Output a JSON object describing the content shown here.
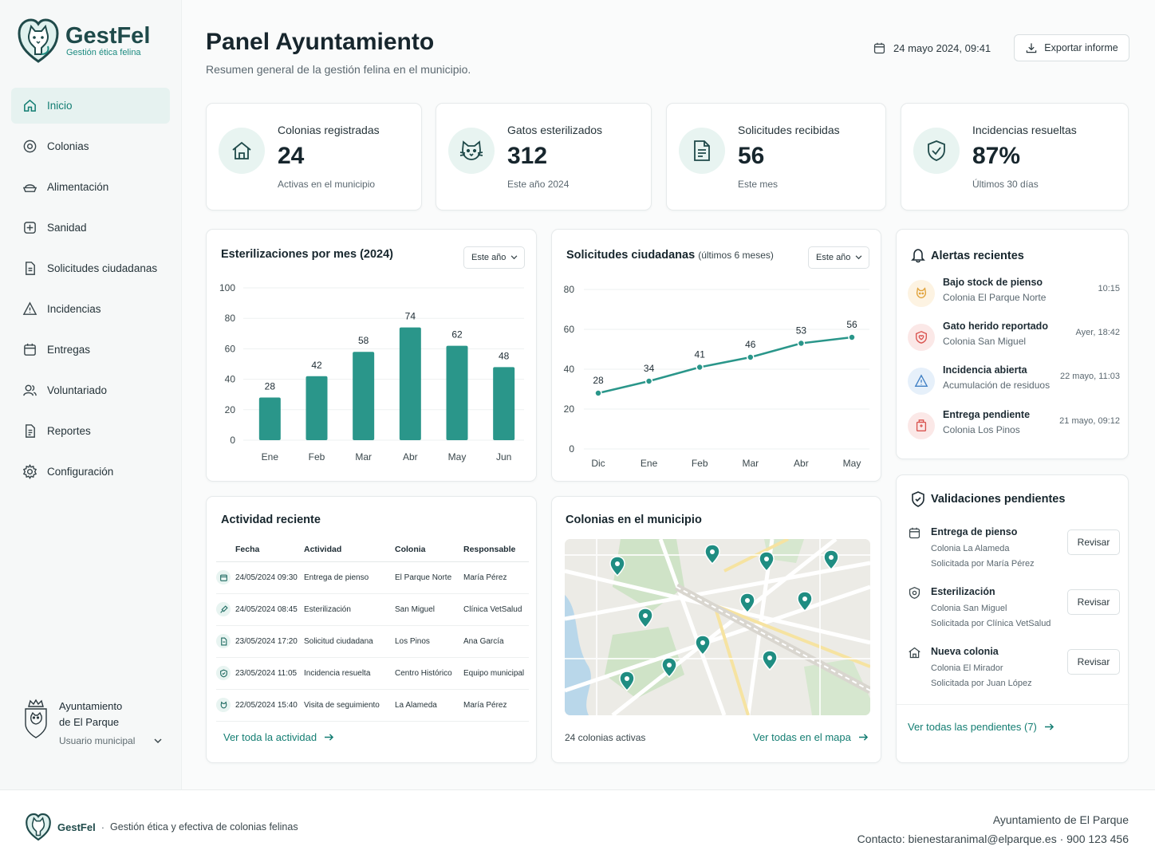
{
  "brand": {
    "name": "GestFel",
    "tagline": "Gestión ética felina"
  },
  "sidebar": {
    "items": [
      {
        "label": "Inicio",
        "icon": "home-icon",
        "active": true
      },
      {
        "label": "Colonias",
        "icon": "target-icon"
      },
      {
        "label": "Alimentación",
        "icon": "food-bowl-icon"
      },
      {
        "label": "Sanidad",
        "icon": "medical-plus-icon"
      },
      {
        "label": "Solicitudes ciudadanas",
        "icon": "document-icon"
      },
      {
        "label": "Incidencias",
        "icon": "warning-icon"
      },
      {
        "label": "Entregas",
        "icon": "calendar-icon"
      },
      {
        "label": "Voluntariado",
        "icon": "users-icon"
      },
      {
        "label": "Reportes",
        "icon": "report-icon"
      },
      {
        "label": "Configuración",
        "icon": "gear-icon"
      }
    ],
    "municipality": {
      "line1": "Ayuntamiento",
      "line2": "de El Parque",
      "role": "Usuario municipal"
    }
  },
  "header": {
    "title": "Panel Ayuntamiento",
    "subtitle": "Resumen general de la gestión felina en el municipio.",
    "date": "24 mayo 2024, 09:41",
    "export_label": "Exportar informe"
  },
  "stats": [
    {
      "label": "Colonias registradas",
      "value": "24",
      "note": "Activas en el municipio",
      "icon": "house-icon"
    },
    {
      "label": "Gatos esterilizados",
      "value": "312",
      "note": "Este año 2024",
      "icon": "cat-icon"
    },
    {
      "label": "Solicitudes recibidas",
      "value": "56",
      "note": "Este mes",
      "icon": "document-icon"
    },
    {
      "label": "Incidencias resueltas",
      "value": "87%",
      "note": "Últimos 30 días",
      "icon": "shield-check-icon"
    }
  ],
  "chart_data": [
    {
      "type": "bar",
      "title": "Esterilizaciones por mes (2024)",
      "filter": "Este año",
      "categories": [
        "Ene",
        "Feb",
        "Mar",
        "Abr",
        "May",
        "Jun"
      ],
      "values": [
        28,
        42,
        58,
        74,
        62,
        48
      ],
      "yticks": [
        "0",
        "20",
        "40",
        "60",
        "80",
        "100"
      ],
      "ylim": [
        0,
        100
      ],
      "color": "#2a968a",
      "grid": true
    },
    {
      "type": "line",
      "title": "Solicitudes ciudadanas",
      "subtitle": "(últimos 6 meses)",
      "filter": "Este año",
      "categories": [
        "Dic",
        "Ene",
        "Feb",
        "Mar",
        "Abr",
        "May"
      ],
      "values": [
        28,
        34,
        41,
        46,
        53,
        56
      ],
      "yticks": [
        "0",
        "20",
        "40",
        "60",
        "80"
      ],
      "ylim": [
        0,
        80
      ],
      "color": "#2a968a",
      "grid": true
    }
  ],
  "alerts": {
    "title": "Alertas recientes",
    "items": [
      {
        "title": "Bajo stock de pienso",
        "subtitle": "Colonia El Parque Norte",
        "time": "10:15",
        "icon": "cat-face-icon",
        "color": "#e0a23a",
        "bg": "#fdf3e2"
      },
      {
        "title": "Gato herido reportado",
        "subtitle": "Colonia San Miguel",
        "time": "Ayer, 18:42",
        "icon": "shield-alert-icon",
        "color": "#d9534f",
        "bg": "#fbe8e7"
      },
      {
        "title": "Incidencia abierta",
        "subtitle": "Acumulación de residuos",
        "time": "22 mayo, 11:03",
        "icon": "warning-icon",
        "color": "#3f7fc4",
        "bg": "#e6f0fa"
      },
      {
        "title": "Entrega pendiente",
        "subtitle": "Colonia Los Pinos",
        "time": "21 mayo, 09:12",
        "icon": "package-icon",
        "color": "#d9534f",
        "bg": "#fbe8e7"
      }
    ]
  },
  "validations": {
    "title": "Validaciones pendientes",
    "items": [
      {
        "title": "Entrega de pienso",
        "line1": "Colonia La Alameda",
        "line2": "Solicitada por María Pérez",
        "button": "Revisar",
        "icon": "calendar-icon"
      },
      {
        "title": "Esterilización",
        "line1": "Colonia San Miguel",
        "line2": "Solicitada por Clínica VetSalud",
        "button": "Revisar",
        "icon": "badge-icon"
      },
      {
        "title": "Nueva colonia",
        "line1": "Colonia El Mirador",
        "line2": "Solicitada por Juan López",
        "button": "Revisar",
        "icon": "house-icon"
      }
    ],
    "link": "Ver todas las pendientes (7)"
  },
  "activity": {
    "title": "Actividad reciente",
    "columns": [
      "Fecha",
      "Actividad",
      "Colonia",
      "Responsable"
    ],
    "rows": [
      {
        "date": "24/05/2024 09:30",
        "activity": "Entrega de pienso",
        "colony": "El Parque Norte",
        "owner": "María Pérez",
        "icon": "calendar-icon"
      },
      {
        "date": "24/05/2024 08:45",
        "activity": "Esterilización",
        "colony": "San Miguel",
        "owner": "Clínica VetSalud",
        "icon": "syringe-icon"
      },
      {
        "date": "23/05/2024 17:20",
        "activity": "Solicitud ciudadana",
        "colony": "Los Pinos",
        "owner": "Ana García",
        "icon": "document-icon"
      },
      {
        "date": "23/05/2024 11:05",
        "activity": "Incidencia resuelta",
        "colony": "Centro Histórico",
        "owner": "Equipo municipal",
        "icon": "shield-check-icon"
      },
      {
        "date": "22/05/2024 15:40",
        "activity": "Visita de seguimiento",
        "colony": "La Alameda",
        "owner": "María Pérez",
        "icon": "cat-face-icon"
      }
    ],
    "link": "Ver toda la actividad"
  },
  "map": {
    "title": "Colonias en el municipio",
    "count_text": "24 colonias activas",
    "link": "Ver todas en el mapa"
  },
  "footer": {
    "brand": "GestFel",
    "tagline": "Gestión ética y efectiva de colonias felinas",
    "org": "Ayuntamiento de El Parque",
    "contact": "Contacto: bienestaranimal@elparque.es  ·  900 123 456"
  },
  "colors": {
    "accent": "#127d72",
    "bar": "#2a968a",
    "active_bg": "#e6f2f0"
  }
}
